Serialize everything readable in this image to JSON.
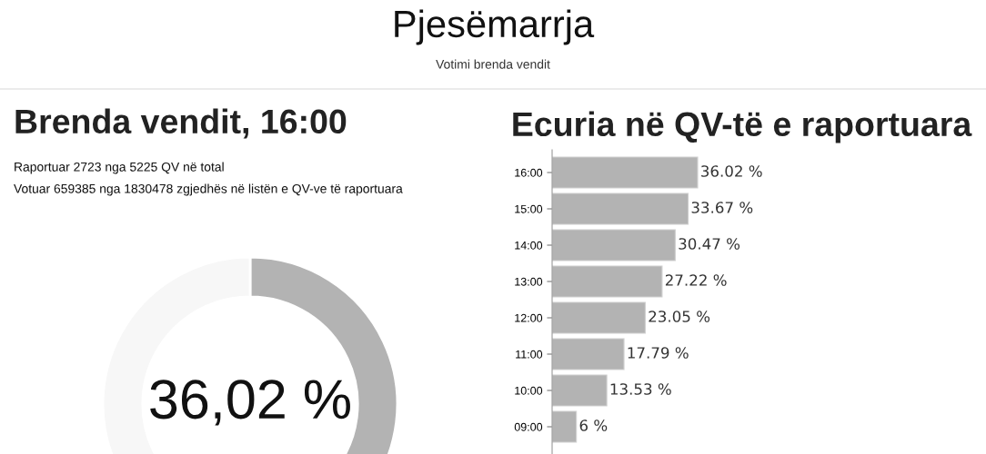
{
  "chart_data": [
    {
      "type": "donut",
      "title": "Brenda vendit, 16:00",
      "annotations": [
        "Pjesëmarrja",
        "Votimi brenda vendit",
        "Raportuar 2723 nga 5225 QV në total",
        "Votuar 659385 nga 1830478 zgjedhës në listën e QV-ve të raportuara"
      ],
      "categories": [
        null,
        null
      ],
      "values": [
        36.02,
        63.98
      ],
      "colors": [
        "#b3b3b3",
        "#f7f7f7"
      ],
      "value_labels": [
        "36,02 %",
        null
      ]
    },
    {
      "type": "bar",
      "orientation": "horizontal",
      "title": "Ecuria në QV-të e raportuara",
      "categories": [
        "16:00",
        "15:00",
        "14:00",
        "13:00",
        "12:00",
        "11:00",
        "10:00",
        "09:00"
      ],
      "values": [
        36.02,
        33.67,
        30.47,
        27.22,
        23.05,
        17.79,
        13.53,
        6
      ],
      "value_labels": [
        "36.02 %",
        "33.67 %",
        "30.47 %",
        "27.22 %",
        "23.05 %",
        "17.79 %",
        "13.53 %",
        "6 %"
      ],
      "color": "#b3b3b3",
      "tick_labels": "y",
      "grid": false,
      "legend": false
    }
  ]
}
